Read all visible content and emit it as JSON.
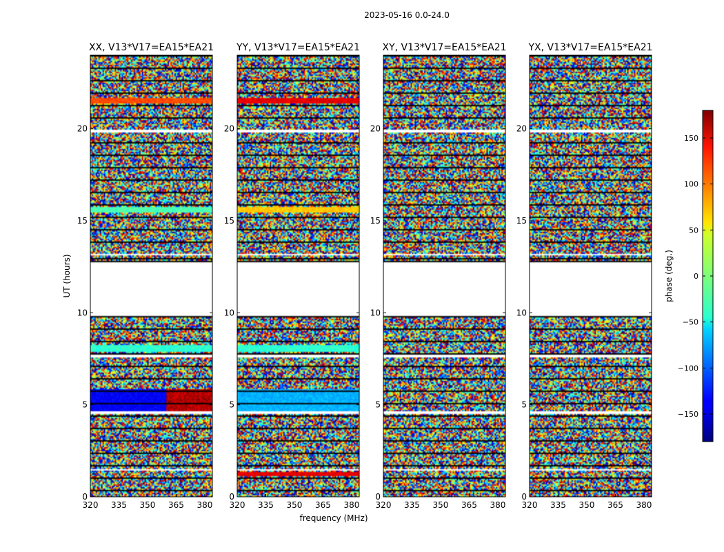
{
  "suptitle": "2023-05-16 0.0-24.0",
  "chart_data": [
    {
      "type": "heatmap",
      "title": "XX, V13*V17=EA15*EA21",
      "x_ticks": [
        "320",
        "335",
        "350",
        "365",
        "380"
      ],
      "y_ticks": [
        "0",
        "5",
        "10",
        "15",
        "20"
      ],
      "xlim": [
        320,
        384
      ],
      "ylim": [
        0,
        24
      ],
      "xlabel": "",
      "ylabel": "UT (hours)"
    },
    {
      "type": "heatmap",
      "title": "YY, V13*V17=EA15*EA21",
      "x_ticks": [
        "320",
        "335",
        "350",
        "365",
        "380"
      ],
      "y_ticks": [
        "0",
        "5",
        "10",
        "15",
        "20"
      ],
      "xlim": [
        320,
        384
      ],
      "ylim": [
        0,
        24
      ],
      "xlabel": "frequency (MHz)",
      "ylabel": ""
    },
    {
      "type": "heatmap",
      "title": "XY, V13*V17=EA15*EA21",
      "x_ticks": [
        "320",
        "335",
        "350",
        "365",
        "380"
      ],
      "y_ticks": [
        "0",
        "5",
        "10",
        "15",
        "20"
      ],
      "xlim": [
        320,
        384
      ],
      "ylim": [
        0,
        24
      ],
      "xlabel": "",
      "ylabel": ""
    },
    {
      "type": "heatmap",
      "title": "YX, V13*V17=EA15*EA21",
      "x_ticks": [
        "320",
        "335",
        "350",
        "365",
        "380"
      ],
      "y_ticks": [
        "0",
        "5",
        "10",
        "15",
        "20"
      ],
      "xlim": [
        320,
        384
      ],
      "ylim": [
        0,
        24
      ],
      "xlabel": "",
      "ylabel": ""
    }
  ],
  "colorbar": {
    "label": "phase (deg.)",
    "ticks": [
      "150",
      "100",
      "50",
      "0",
      "−50",
      "−100",
      "−150"
    ],
    "range": [
      -180,
      180
    ],
    "colormap": "jet"
  }
}
